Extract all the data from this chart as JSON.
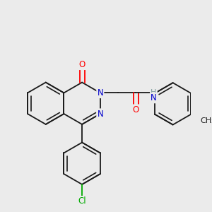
{
  "background_color": "#ebebeb",
  "bond_color": "#1a1a1a",
  "atom_colors": {
    "O": "#ff0000",
    "N": "#0000cc",
    "H": "#7a9a9a",
    "Cl": "#00aa00",
    "C": "#1a1a1a"
  },
  "figsize": [
    3.0,
    3.0
  ],
  "dpi": 100
}
